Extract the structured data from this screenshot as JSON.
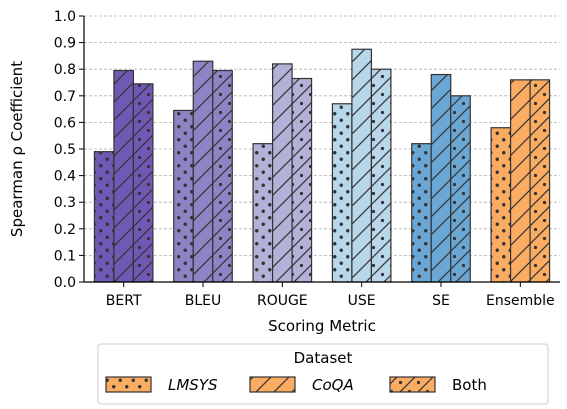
{
  "chart_data": {
    "type": "bar",
    "categories": [
      "BERT",
      "BLEU",
      "ROUGE",
      "USE",
      "SE",
      "Ensemble"
    ],
    "series": [
      {
        "name": "LMSYS",
        "values": [
          0.49,
          0.645,
          0.52,
          0.67,
          0.52,
          0.58
        ]
      },
      {
        "name": "CoQA",
        "values": [
          0.795,
          0.83,
          0.82,
          0.875,
          0.78,
          0.76
        ]
      },
      {
        "name": "Both",
        "values": [
          0.745,
          0.795,
          0.765,
          0.8,
          0.7,
          0.76
        ]
      }
    ],
    "category_colors": [
      "#6f59b5",
      "#8c84c4",
      "#b3b1d8",
      "#b8d7ea",
      "#6aa7d4",
      "#f9ac62"
    ],
    "series_hatch": [
      "dots",
      "diagonal",
      "diagonal-dots"
    ],
    "xlabel": "Scoring Metric",
    "ylabel": "Spearman ρ Coefficient",
    "ylim": [
      0.0,
      1.0
    ],
    "yticks": [
      "0.0",
      "0.1",
      "0.2",
      "0.3",
      "0.4",
      "0.5",
      "0.6",
      "0.7",
      "0.8",
      "0.9",
      "1.0"
    ],
    "grid": "horizontal-dashed",
    "legend": {
      "title": "Dataset",
      "placement": "bottom-center",
      "entries": [
        "LMSYS",
        "CoQA",
        "Both"
      ]
    }
  }
}
